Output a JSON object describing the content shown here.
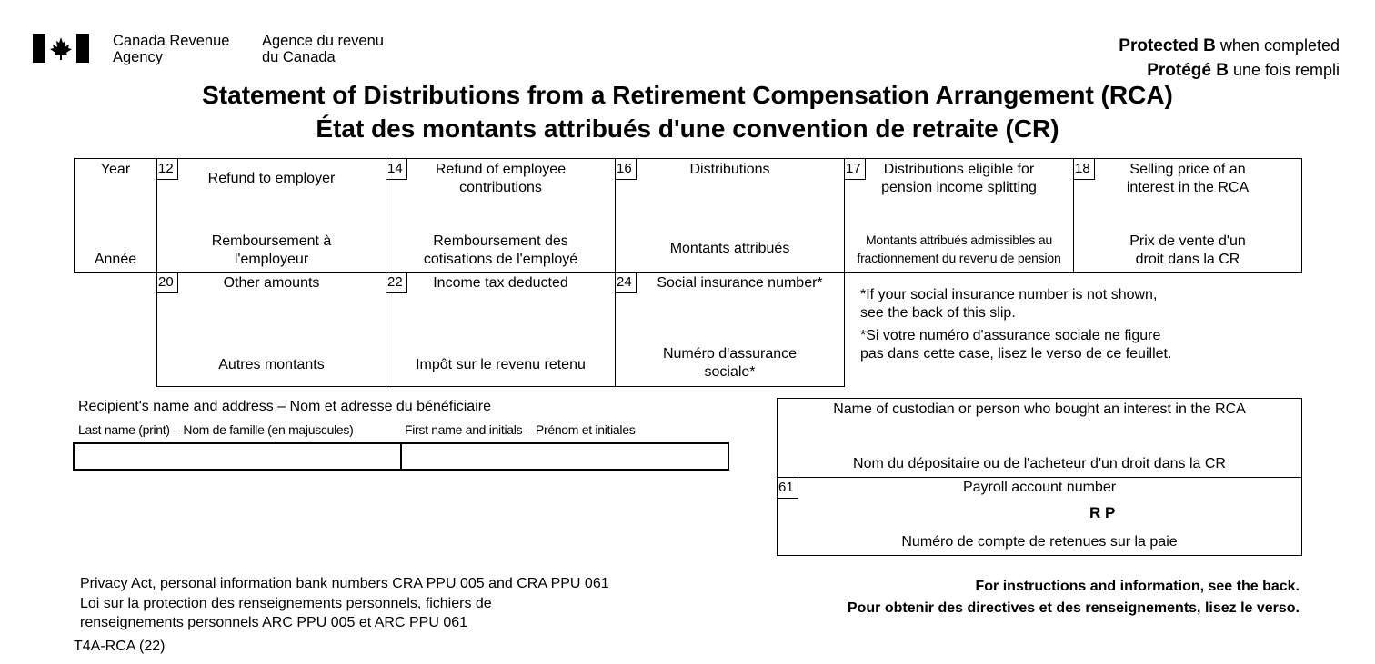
{
  "header": {
    "department_en_line1": "Canada Revenue",
    "department_en_line2": "Agency",
    "department_fr_line1": "Agence du revenu",
    "department_fr_line2": "du Canada",
    "protected_en_bold": "Protected B",
    "protected_en_rest": " when completed",
    "protected_fr_bold": "Protégé B",
    "protected_fr_rest": " une fois rempli",
    "title_en": "Statement of Distributions from a Retirement Compensation Arrangement (RCA)",
    "title_fr": "État des montants attribués d'une convention de retraite (CR)"
  },
  "colors": {
    "flag_red": "#000000",
    "border": "#000000"
  },
  "boxes": {
    "year": {
      "label_en": "Year",
      "label_fr": "Année"
    },
    "box12": {
      "number": "12",
      "label_en": "Refund to employer",
      "label_fr_line1": "Remboursement à",
      "label_fr_line2": "l'employeur"
    },
    "box14": {
      "number": "14",
      "label_en_line1": "Refund of employee",
      "label_en_line2": "contributions",
      "label_fr_line1": "Remboursement des",
      "label_fr_line2": "cotisations de l'employé"
    },
    "box16": {
      "number": "16",
      "label_en": "Distributions",
      "label_fr": "Montants attribués"
    },
    "box17": {
      "number": "17",
      "label_en_line1": "Distributions eligible for",
      "label_en_line2": "pension income splitting",
      "label_fr_line1": "Montants attribués admissibles au",
      "label_fr_line2": "fractionnement du revenu de pension"
    },
    "box18": {
      "number": "18",
      "label_en_line1": "Selling price of an",
      "label_en_line2": "interest in the RCA",
      "label_fr_line1": "Prix de vente d'un",
      "label_fr_line2": "droit dans la CR"
    },
    "box20": {
      "number": "20",
      "label_en": "Other amounts",
      "label_fr": "Autres montants"
    },
    "box22": {
      "number": "22",
      "label_en": "Income tax deducted",
      "label_fr": "Impôt sur le revenu retenu"
    },
    "box24": {
      "number": "24",
      "label_en": "Social insurance number*",
      "label_fr_line1": "Numéro d'assurance",
      "label_fr_line2": "sociale*"
    }
  },
  "sin_note": {
    "en_line1": "*If your social insurance number is not shown,",
    "en_line2": "see the back of this slip.",
    "fr_line1": "*Si votre numéro d'assurance sociale ne figure",
    "fr_line2": "pas dans cette case, lisez le verso de ce feuillet."
  },
  "recipient": {
    "heading": "Recipient's name and address  –  Nom et adresse du bénéficiaire",
    "last_name_label": "Last name (print)  –  Nom de famille (en majuscules)",
    "first_name_label": "First name and initials  –  Prénom et initiales",
    "last_name_value": "",
    "first_name_value": ""
  },
  "custodian": {
    "label_en": "Name of custodian or person who bought an interest in the RCA",
    "label_fr": "Nom du dépositaire ou de l'acheteur d'un droit dans la CR"
  },
  "box61": {
    "number": "61",
    "label_en": "Payroll account number",
    "rp": "R P",
    "label_fr": "Numéro de compte de retenues sur la paie"
  },
  "footer": {
    "privacy_line1": "Privacy Act, personal information bank numbers CRA PPU 005 and CRA PPU 061",
    "privacy_line2": "Loi sur la protection des renseignements personnels, fichiers de",
    "privacy_line3": "renseignements personnels ARC PPU 005 et ARC PPU 061",
    "form_code": "T4A-RCA (22)",
    "instructions_en": "For instructions and information, see the back.",
    "instructions_fr": "Pour obtenir des directives et des renseignements, lisez le verso."
  }
}
